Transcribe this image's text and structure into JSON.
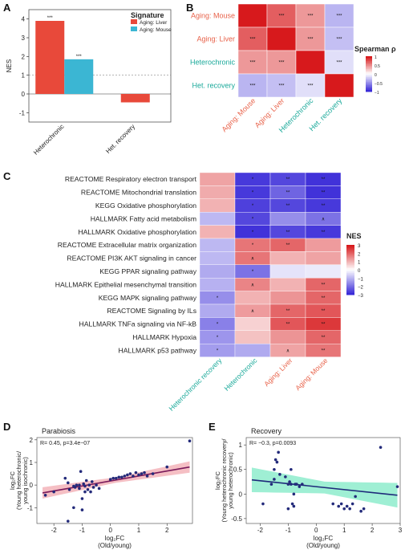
{
  "panels": {
    "A": "A",
    "B": "B",
    "C": "C",
    "D": "D",
    "E": "E"
  },
  "chart_data": [
    {
      "panel": "A",
      "type": "bar",
      "ylabel": "NES",
      "ylim": [
        -1.5,
        4.5
      ],
      "yticks": [
        -1,
        0,
        1,
        2,
        3,
        4
      ],
      "categories": [
        "Heterochronic",
        "Het. recovery"
      ],
      "legend_title": "Signature",
      "series": [
        {
          "name": "Aging: Liver",
          "color": "#e8493a",
          "values": [
            3.9,
            -0.45
          ],
          "labels": [
            "***",
            ""
          ]
        },
        {
          "name": "Aging: Mouse",
          "color": "#3bb6d3",
          "values": [
            1.85,
            null
          ],
          "labels": [
            "***",
            ""
          ]
        }
      ],
      "reference_line": 1,
      "legend_position": "top-right"
    },
    {
      "panel": "B",
      "type": "heatmap",
      "rows": [
        "Aging: Mouse",
        "Aging: Liver",
        "Heterochronic",
        "Het. recovery"
      ],
      "cols": [
        "Aging: Mouse",
        "Aging: Liver",
        "Heterochronic",
        "Het. recovery"
      ],
      "label_colors": [
        "#e8624a",
        "#e8624a",
        "#1aa99a",
        "#1aa99a"
      ],
      "values": [
        [
          1.0,
          0.7,
          0.45,
          -0.35
        ],
        [
          0.7,
          1.0,
          0.45,
          -0.3
        ],
        [
          0.45,
          0.45,
          1.0,
          -0.15
        ],
        [
          -0.35,
          -0.3,
          -0.15,
          1.0
        ]
      ],
      "stars": [
        [
          "",
          "***",
          "***",
          "***"
        ],
        [
          "***",
          "",
          "***",
          "***"
        ],
        [
          "***",
          "***",
          "",
          "***"
        ],
        [
          "***",
          "***",
          "***",
          ""
        ]
      ],
      "colorbar_title": "Spearman ρ",
      "colorbar_ticks": [
        "1",
        "0.5",
        "0",
        "−0.5",
        "−1"
      ]
    },
    {
      "panel": "C",
      "type": "heatmap",
      "rows": [
        "REACTOME Respiratory electron transport",
        "REACTOME Mitochondrial translation",
        "KEGG Oxidative phosphorylation",
        "HALLMARK Fatty acid metabolism",
        "HALLMARK Oxidative phosphorylation",
        "REACTOME Extracellular matrix organization",
        "REACTOME PI3K AKT signaling in cancer",
        "KEGG PPAR signaling pathway",
        "HALLMARK Epithelial mesenchymal transition",
        "KEGG MAPK signaling pathway",
        "REACTOME Signaling by ILs",
        "HALLMARK TNFa signaling via NF-kB",
        "HALLMARK Hypoxia",
        "HALLMARK p53 pathway"
      ],
      "cols": [
        "Heterochronic recovery",
        "Heterochronic",
        "Aging: Liver",
        "Aging: Mouse"
      ],
      "label_colors": [
        "#1aa99a",
        "#1aa99a",
        "#e8624a",
        "#e8624a"
      ],
      "values": [
        [
          1.2,
          -2.8,
          -2.6,
          -2.9
        ],
        [
          1.1,
          -2.8,
          -2.2,
          -2.9
        ],
        [
          1.0,
          -2.7,
          -2.6,
          -2.8
        ],
        [
          -1.0,
          -2.6,
          -1.6,
          -2.0
        ],
        [
          1.0,
          -2.9,
          -2.6,
          -2.8
        ],
        [
          -1.0,
          1.8,
          2.0,
          1.3
        ],
        [
          -1.0,
          1.8,
          1.0,
          1.2
        ],
        [
          -1.2,
          -2.0,
          -0.4,
          -0.3
        ],
        [
          -1.1,
          1.6,
          1.0,
          2.0
        ],
        [
          -1.6,
          1.0,
          1.4,
          2.0
        ],
        [
          -1.2,
          1.3,
          2.0,
          2.2
        ],
        [
          -1.8,
          0.6,
          2.2,
          2.6
        ],
        [
          -1.5,
          0.8,
          1.4,
          2.0
        ],
        [
          -1.4,
          -1.2,
          1.2,
          1.8
        ]
      ],
      "stars": [
        [
          "",
          "*",
          "**",
          "**"
        ],
        [
          "",
          "*",
          "**",
          "**"
        ],
        [
          "",
          "*",
          "**",
          "**"
        ],
        [
          "",
          "*",
          "",
          "∧"
        ],
        [
          "",
          "*",
          "**",
          "**"
        ],
        [
          "",
          "*",
          "**",
          ""
        ],
        [
          "",
          "∧",
          "",
          ""
        ],
        [
          "",
          "*",
          "",
          ""
        ],
        [
          "",
          "∧",
          "",
          "**"
        ],
        [
          "*",
          "",
          "",
          "**"
        ],
        [
          "",
          "∧",
          "**",
          "**"
        ],
        [
          "*",
          "",
          "**",
          "**"
        ],
        [
          "*",
          "",
          "",
          "**"
        ],
        [
          "*",
          "",
          "∧",
          "**"
        ]
      ],
      "colorbar_title": "NES",
      "colorbar_ticks": [
        "3",
        "2",
        "1",
        "0",
        "−1",
        "−2",
        "−3"
      ]
    },
    {
      "panel": "D",
      "type": "scatter",
      "title": "Parabiosis",
      "annotation": "R= 0.45, p=3.4e−07",
      "xlabel_line1": "log₂FC",
      "xlabel_line2": "(Old/young)",
      "ylabel_line1": "log₂FC",
      "ylabel_line2": "(Young heterochronic/",
      "ylabel_line3": "young isochronic)",
      "xlim": [
        -2.6,
        2.9
      ],
      "ylim": [
        -1.7,
        2.1
      ],
      "xticks": [
        -2,
        -1,
        0,
        1,
        2
      ],
      "yticks": [
        -1,
        0,
        1,
        2
      ],
      "fit": {
        "slope": 0.22,
        "intercept": 0.18,
        "color": "#7a1a5a",
        "band_color": "#f2a9b0"
      },
      "points": [
        [
          -2.3,
          -0.45
        ],
        [
          -2.0,
          -0.3
        ],
        [
          -1.6,
          0.3
        ],
        [
          -1.5,
          0.1
        ],
        [
          -1.45,
          -0.2
        ],
        [
          -1.3,
          -0.05
        ],
        [
          -1.25,
          -0.1
        ],
        [
          -1.2,
          0.0
        ],
        [
          -1.1,
          -0.15
        ],
        [
          -1.05,
          0.6
        ],
        [
          -1.0,
          -0.6
        ],
        [
          -1.0,
          -1.1
        ],
        [
          -0.95,
          0.05
        ],
        [
          -0.9,
          -0.05
        ],
        [
          -0.85,
          0.2
        ],
        [
          -0.8,
          -0.2
        ],
        [
          -0.75,
          0.0
        ],
        [
          -0.7,
          -0.3
        ],
        [
          -0.65,
          0.15
        ],
        [
          -0.6,
          -0.1
        ],
        [
          -0.5,
          0.0
        ],
        [
          -1.3,
          -1.0
        ],
        [
          -1.5,
          -1.6
        ],
        [
          -1.1,
          0.0
        ],
        [
          -0.9,
          -0.3
        ],
        [
          0.1,
          0.3
        ],
        [
          0.3,
          0.35
        ],
        [
          0.5,
          0.4
        ],
        [
          0.6,
          0.45
        ],
        [
          0.7,
          0.5
        ],
        [
          0.8,
          0.4
        ],
        [
          0.9,
          0.55
        ],
        [
          1.0,
          0.45
        ],
        [
          1.1,
          0.5
        ],
        [
          1.2,
          0.55
        ],
        [
          1.3,
          0.4
        ],
        [
          0.4,
          0.35
        ],
        [
          0.2,
          0.3
        ],
        [
          1.5,
          0.5
        ],
        [
          2.0,
          0.8
        ],
        [
          2.8,
          1.95
        ],
        [
          -0.4,
          -0.15
        ],
        [
          0.0,
          0.25
        ]
      ]
    },
    {
      "panel": "E",
      "type": "scatter",
      "title": "Recovery",
      "annotation": "R= −0.3, p=0.0093",
      "xlabel_line1": "log₂FC",
      "xlabel_line2": "(Old/young)",
      "ylabel_line1": "log₂FC",
      "ylabel_line2": "(Young heterochronic recovery/",
      "ylabel_line3": "young heterochronic)",
      "xlim": [
        -2.5,
        3.0
      ],
      "ylim": [
        -0.6,
        1.15
      ],
      "xticks": [
        -2,
        -1,
        0,
        1,
        2,
        3
      ],
      "yticks": [
        -0.5,
        0.0,
        0.5,
        1.0
      ],
      "fit": {
        "slope": -0.06,
        "intercept": 0.15,
        "color": "#1e2a7a",
        "band_color": "#7fe9c5"
      },
      "points": [
        [
          -1.9,
          -0.2
        ],
        [
          -1.6,
          0.2
        ],
        [
          -1.5,
          0.3
        ],
        [
          -1.5,
          0.5
        ],
        [
          -1.45,
          0.7
        ],
        [
          -1.4,
          0.65
        ],
        [
          -1.35,
          0.85
        ],
        [
          -1.3,
          0.4
        ],
        [
          -1.1,
          0.35
        ],
        [
          -1.0,
          0.2
        ],
        [
          -0.95,
          0.25
        ],
        [
          -0.9,
          0.2
        ],
        [
          -0.85,
          -0.2
        ],
        [
          -0.8,
          -0.25
        ],
        [
          -0.75,
          0.2
        ],
        [
          -0.7,
          0.2
        ],
        [
          -0.6,
          0.15
        ],
        [
          -0.5,
          0.2
        ],
        [
          -1.0,
          -0.3
        ],
        [
          -0.9,
          0.5
        ],
        [
          0.6,
          -0.2
        ],
        [
          0.8,
          -0.25
        ],
        [
          0.9,
          -0.2
        ],
        [
          1.0,
          -0.3
        ],
        [
          1.1,
          -0.25
        ],
        [
          1.2,
          -0.3
        ],
        [
          1.3,
          -0.2
        ],
        [
          1.4,
          -0.05
        ],
        [
          1.6,
          -0.35
        ],
        [
          1.7,
          -0.3
        ],
        [
          2.3,
          0.95
        ],
        [
          2.9,
          0.15
        ],
        [
          -0.8,
          0.0
        ]
      ]
    }
  ]
}
